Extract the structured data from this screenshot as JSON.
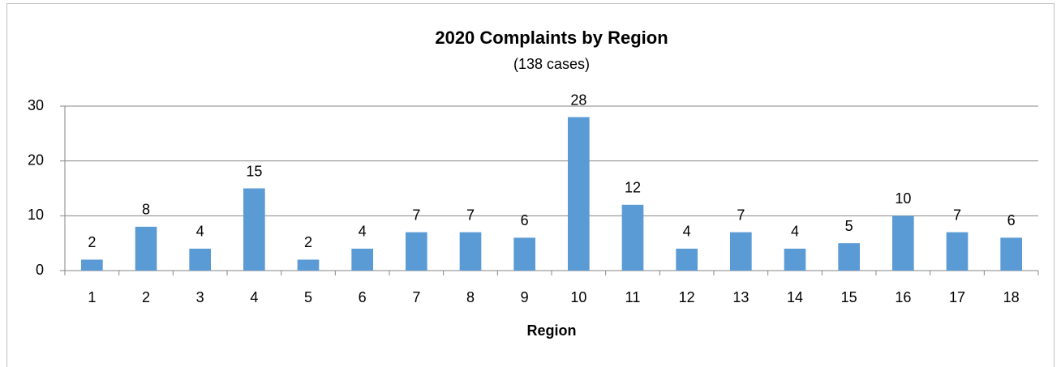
{
  "chart_data": {
    "type": "bar",
    "title": "2020 Complaints by Region",
    "subtitle": "(138 cases)",
    "x_label": "Region",
    "categories": [
      "1",
      "2",
      "3",
      "4",
      "5",
      "6",
      "7",
      "8",
      "9",
      "10",
      "11",
      "12",
      "13",
      "14",
      "15",
      "16",
      "17",
      "18"
    ],
    "values": [
      2,
      8,
      4,
      15,
      2,
      4,
      7,
      7,
      6,
      28,
      12,
      4,
      7,
      4,
      5,
      10,
      7,
      6
    ],
    "color": "#5b9bd5",
    "ylim": [
      0,
      30
    ],
    "yticks": [
      0,
      10,
      20,
      30
    ],
    "grid": true,
    "data_labels": true
  }
}
